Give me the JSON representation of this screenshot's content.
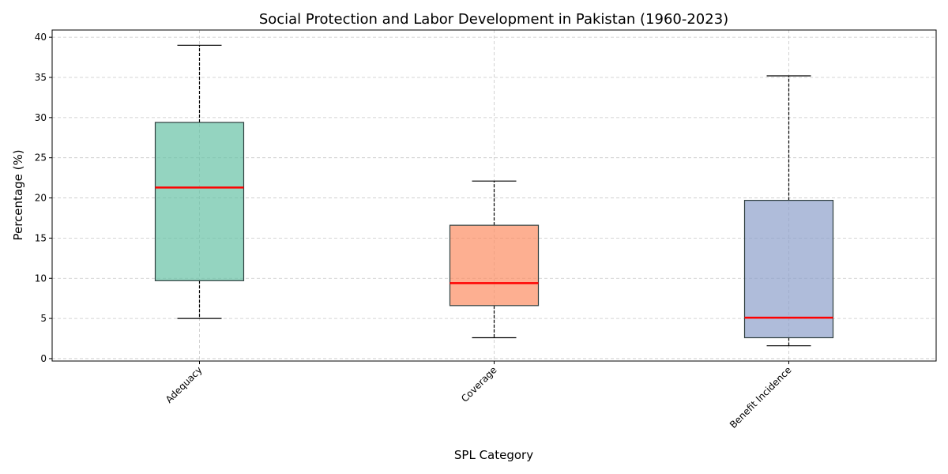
{
  "chart_data": {
    "type": "box",
    "title": "Social Protection and Labor Development in Pakistan (1960-2023)",
    "xlabel": "SPL Category",
    "ylabel": "Percentage (%)",
    "ylim": [
      -0.3,
      40.9
    ],
    "yticks": [
      0,
      5,
      10,
      15,
      20,
      25,
      30,
      35,
      40
    ],
    "grid": true,
    "categories": [
      "Adequacy",
      "Coverage",
      "Benefit Incidence"
    ],
    "boxes": [
      {
        "category": "Adequacy",
        "whisker_low": 5.0,
        "q1": 9.7,
        "median": 21.3,
        "q3": 29.4,
        "whisker_high": 39.0,
        "color": "#66c2a5"
      },
      {
        "category": "Coverage",
        "whisker_low": 2.6,
        "q1": 6.6,
        "median": 9.4,
        "q3": 16.6,
        "whisker_high": 22.1,
        "color": "#fc8d62"
      },
      {
        "category": "Benefit Incidence",
        "whisker_low": 1.6,
        "q1": 2.6,
        "median": 5.1,
        "q3": 19.7,
        "whisker_high": 35.2,
        "color": "#8da0cb"
      }
    ],
    "median_color": "#ff0000"
  }
}
